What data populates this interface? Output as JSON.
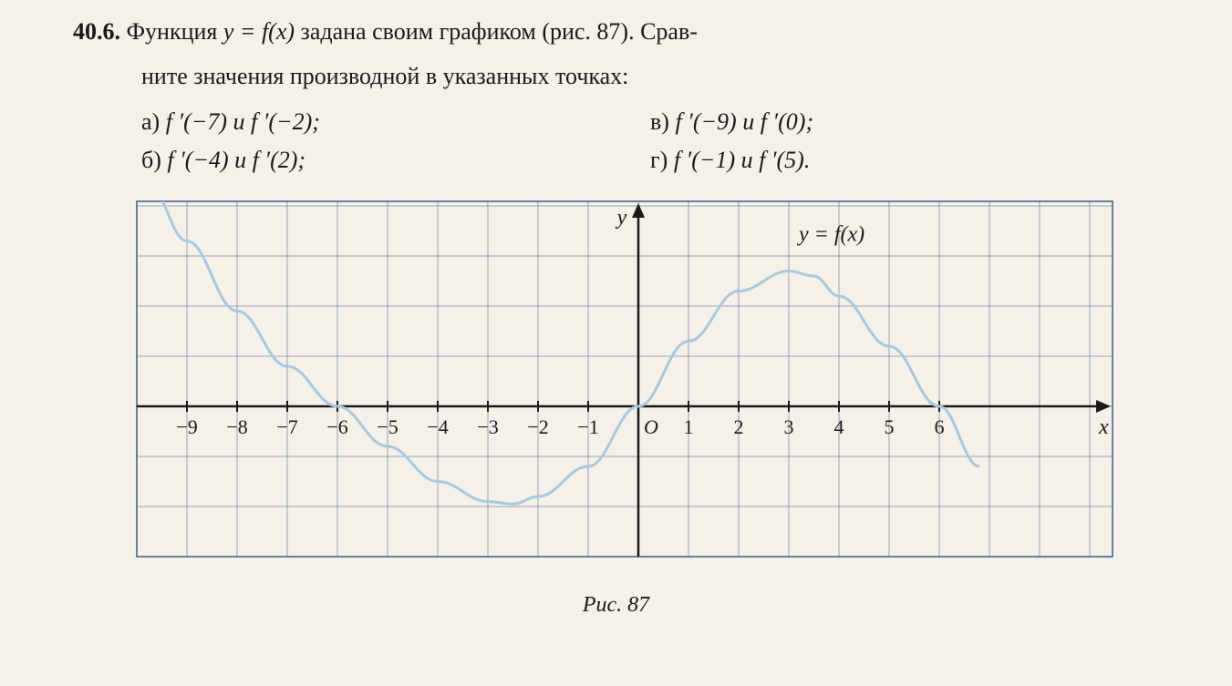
{
  "problem": {
    "number": "40.6.",
    "text_part1": "Функция ",
    "formula1": "y = f(x)",
    "text_part2": " задана своим графиком (рис. 87). Срав-",
    "text_line2": "ните значения производной в указанных точках:"
  },
  "options": {
    "a": {
      "label": "а) ",
      "content": "f ′(−7) и f ′(−2);"
    },
    "b": {
      "label": "б) ",
      "content": "f ′(−4) и f ′(2);"
    },
    "v": {
      "label": "в) ",
      "content": "f ′(−9) и f ′(0);"
    },
    "g": {
      "label": "г) ",
      "content": "f ′(−1) и f ′(5)."
    }
  },
  "graph": {
    "caption": "Рис. 87",
    "x_axis_label": "x",
    "y_axis_label": "y",
    "origin_label": "O",
    "function_label": "y = f(x)",
    "x_ticks": [
      -9,
      -8,
      -7,
      -6,
      -5,
      -4,
      -3,
      -2,
      -1,
      1,
      2,
      3,
      4,
      5,
      6
    ],
    "x_tick_labels": [
      "−9",
      "−8",
      "−7",
      "−6",
      "−5",
      "−4",
      "−3",
      "−2",
      "−1",
      "1",
      "2",
      "3",
      "4",
      "5",
      "6"
    ],
    "grid_cell": 55,
    "x_range": [
      -10,
      9
    ],
    "y_range": [
      -3,
      4.7
    ],
    "curve_points": [
      {
        "x": -9.8,
        "y": 4.5
      },
      {
        "x": -9,
        "y": 3.3
      },
      {
        "x": -8,
        "y": 1.9
      },
      {
        "x": -7,
        "y": 0.8
      },
      {
        "x": -6,
        "y": 0
      },
      {
        "x": -5,
        "y": -0.8
      },
      {
        "x": -4,
        "y": -1.5
      },
      {
        "x": -3,
        "y": -1.9
      },
      {
        "x": -2.5,
        "y": -1.95
      },
      {
        "x": -2,
        "y": -1.8
      },
      {
        "x": -1,
        "y": -1.2
      },
      {
        "x": 0,
        "y": 0
      },
      {
        "x": 1,
        "y": 1.3
      },
      {
        "x": 2,
        "y": 2.3
      },
      {
        "x": 3,
        "y": 2.7
      },
      {
        "x": 3.5,
        "y": 2.6
      },
      {
        "x": 4,
        "y": 2.2
      },
      {
        "x": 5,
        "y": 1.2
      },
      {
        "x": 6,
        "y": 0
      },
      {
        "x": 6.8,
        "y": -1.2
      }
    ],
    "colors": {
      "background": "#f5f0e8",
      "grid": "#3a5a8a",
      "axis": "#1a1a1a",
      "curve": "#a8c8e0",
      "text": "#1a1a1a",
      "border": "#3a5a8a"
    },
    "styles": {
      "grid_width": 1,
      "axis_width": 2.5,
      "curve_width": 3,
      "label_fontsize": 24,
      "tick_fontsize": 22
    }
  }
}
